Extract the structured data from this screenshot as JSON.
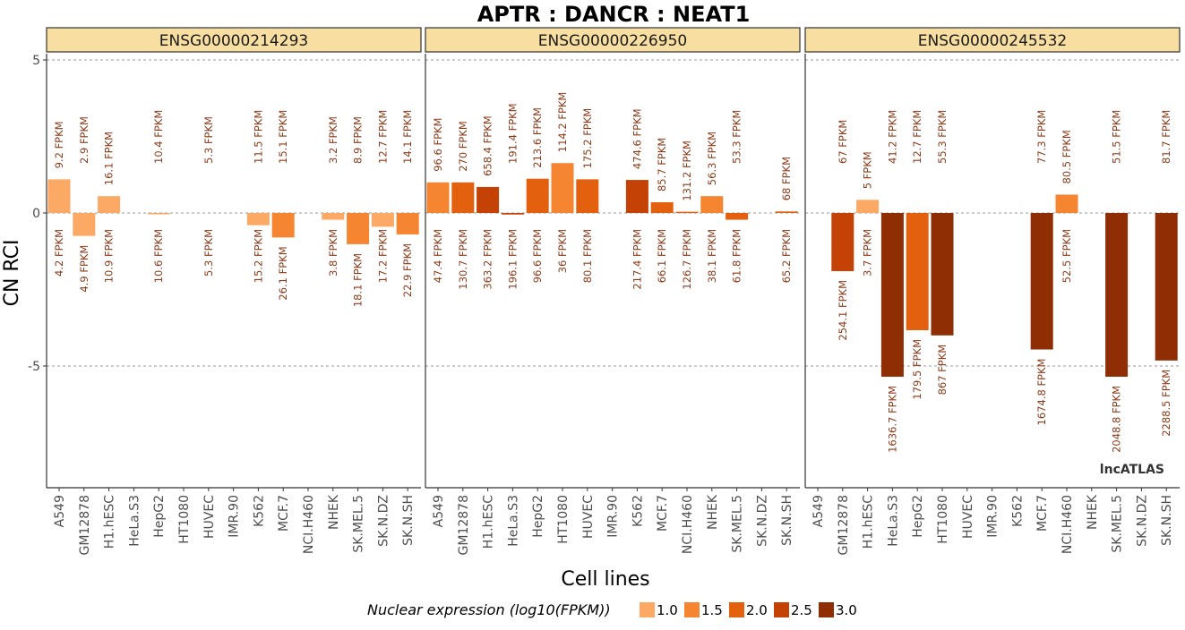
{
  "chart_data": {
    "type": "bar",
    "title": "APTR : DANCR : NEAT1",
    "xlabel": "Cell lines",
    "ylabel": "CN RCI",
    "ylim": [
      -9,
      6
    ],
    "yticks": [
      5,
      0,
      -5
    ],
    "ytick_labels": [
      "5",
      "0",
      "-5"
    ],
    "grid": "dashed at y ticks",
    "categories": [
      "A549",
      "GM12878",
      "H1.hESC",
      "HeLa.S3",
      "HepG2",
      "HT1080",
      "HUVEC",
      "IMR.90",
      "K562",
      "MCF.7",
      "NCI.H460",
      "NHEK",
      "SK.MEL.5",
      "SK.N.DZ",
      "SK.N.SH"
    ],
    "watermark": "lncATLAS",
    "legend": {
      "title": "Nuclear expression (log10(FPKM))",
      "position": "bottom",
      "entries": [
        {
          "label": "1.0",
          "color": "#fca965"
        },
        {
          "label": "1.5",
          "color": "#f58530"
        },
        {
          "label": "2.0",
          "color": "#e3600f"
        },
        {
          "label": "2.5",
          "color": "#c54207"
        },
        {
          "label": "3.0",
          "color": "#8f2e04"
        }
      ]
    },
    "panels": [
      {
        "name": "ENSG00000214293",
        "values": [
          1.1,
          -0.75,
          0.55,
          null,
          -0.03,
          null,
          null,
          null,
          -0.4,
          -0.8,
          null,
          -0.22,
          -1.02,
          -0.45,
          -0.7
        ],
        "nuclear_log10_fpkm": [
          0.62,
          0.69,
          1.04,
          null,
          1.03,
          null,
          null,
          null,
          1.18,
          1.42,
          null,
          0.58,
          1.26,
          1.24,
          1.36
        ],
        "cyto_fpkm": [
          "9.2 FPKM",
          "2.9 FPKM",
          "16.1 FPKM",
          "",
          "10.4 FPKM",
          "",
          "5.3 FPKM",
          "",
          "11.5 FPKM",
          "15.1 FPKM",
          "",
          "3.2 FPKM",
          "8.9 FPKM",
          "12.7 FPKM",
          "14.1 FPKM"
        ],
        "nuc_fpkm": [
          "4.2 FPKM",
          "4.9 FPKM",
          "10.9 FPKM",
          "",
          "10.6 FPKM",
          "",
          "5.3 FPKM",
          "",
          "15.2 FPKM",
          "26.1 FPKM",
          "",
          "3.8 FPKM",
          "18.1 FPKM",
          "17.2 FPKM",
          "22.9 FPKM"
        ]
      },
      {
        "name": "ENSG00000226950",
        "values": [
          1.0,
          1.0,
          0.85,
          -0.05,
          1.12,
          1.63,
          1.1,
          null,
          1.08,
          0.35,
          0.04,
          0.55,
          -0.22,
          null,
          0.05
        ],
        "nuclear_log10_fpkm": [
          1.68,
          2.12,
          2.56,
          2.29,
          1.98,
          1.56,
          1.9,
          null,
          2.34,
          1.82,
          2.1,
          1.58,
          1.79,
          null,
          1.81
        ],
        "cyto_fpkm": [
          "96.6 FPKM",
          "270 FPKM",
          "658.4 FPKM",
          "191.4 FPKM",
          "213.6 FPKM",
          "114.2 FPKM",
          "175.2 FPKM",
          "",
          "474.6 FPKM",
          "85.7 FPKM",
          "131.2 FPKM",
          "56.3 FPKM",
          "53.3 FPKM",
          "",
          "68 FPKM"
        ],
        "nuc_fpkm": [
          "47.4 FPKM",
          "130.7 FPKM",
          "363.2 FPKM",
          "196.1 FPKM",
          "96.6 FPKM",
          "36 FPKM",
          "80.1 FPKM",
          "",
          "217.4 FPKM",
          "66.1 FPKM",
          "126.7 FPKM",
          "38.1 FPKM",
          "61.8 FPKM",
          "",
          "65.2 FPKM"
        ]
      },
      {
        "name": "ENSG00000245532",
        "values": [
          null,
          -1.9,
          0.43,
          -5.35,
          -3.83,
          -4.0,
          null,
          null,
          null,
          -4.46,
          0.6,
          null,
          -5.35,
          null,
          -4.82
        ],
        "nuclear_log10_fpkm": [
          null,
          2.4,
          0.57,
          3.21,
          2.25,
          2.94,
          null,
          null,
          null,
          3.22,
          1.72,
          null,
          3.31,
          null,
          3.36
        ],
        "cyto_fpkm": [
          "",
          "67 FPKM",
          "5 FPKM",
          "41.2 FPKM",
          "12.7 FPKM",
          "55.3 FPKM",
          "",
          "",
          "",
          "77.3 FPKM",
          "80.5 FPKM",
          "",
          "51.5 FPKM",
          "",
          "81.7 FPKM"
        ],
        "nuc_fpkm": [
          "",
          "254.1 FPKM",
          "3.7 FPKM",
          "1636.7 FPKM",
          "179.5 FPKM",
          "867 FPKM",
          "",
          "",
          "",
          "1674.8 FPKM",
          "52.5 FPKM",
          "",
          "2048.8 FPKM",
          "",
          "2288.5 FPKM"
        ]
      }
    ]
  }
}
